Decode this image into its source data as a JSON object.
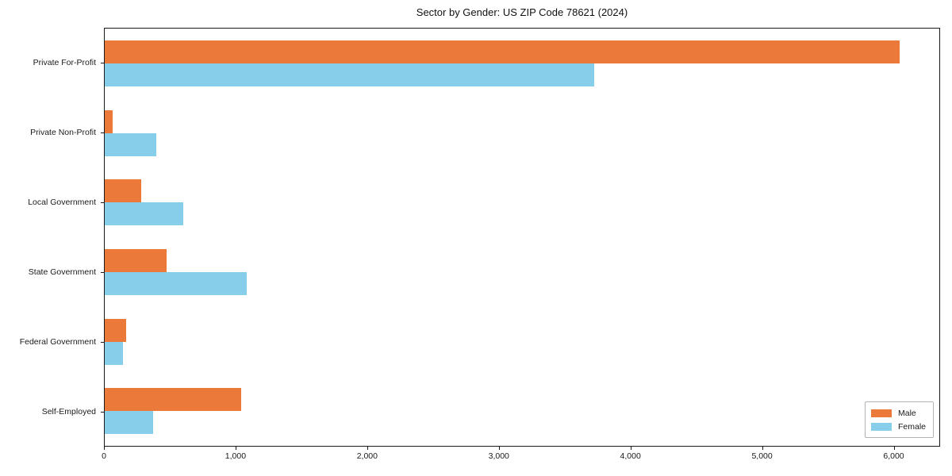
{
  "title": "Sector by Gender: US ZIP Code 78621 (2024)",
  "legend": {
    "items": [
      {
        "label": "Male",
        "color": "#ea793a"
      },
      {
        "label": "Female",
        "color": "#87ceeb"
      }
    ]
  },
  "chart_data": {
    "type": "bar",
    "orientation": "horizontal",
    "title": "Sector by Gender: US ZIP Code 78621 (2024)",
    "xlabel": "",
    "ylabel": "",
    "categories": [
      "Private For-Profit",
      "Private Non-Profit",
      "Local Government",
      "State Government",
      "Federal Government",
      "Self-Employed"
    ],
    "series": [
      {
        "name": "Male",
        "color": "#ea793a",
        "values": [
          6050,
          60,
          280,
          470,
          165,
          1040
        ]
      },
      {
        "name": "Female",
        "color": "#87ceeb",
        "values": [
          3724,
          390,
          600,
          1080,
          140,
          370
        ]
      }
    ],
    "xlim": [
      0,
      6352.5
    ],
    "xticks": {
      "values": [
        0,
        1000,
        2000,
        3000,
        4000,
        5000,
        6000
      ],
      "labels": [
        "0",
        "1,000",
        "2,000",
        "3,000",
        "4,000",
        "5,000",
        "6,000"
      ]
    },
    "grid": false,
    "legend_position": "lower right"
  }
}
